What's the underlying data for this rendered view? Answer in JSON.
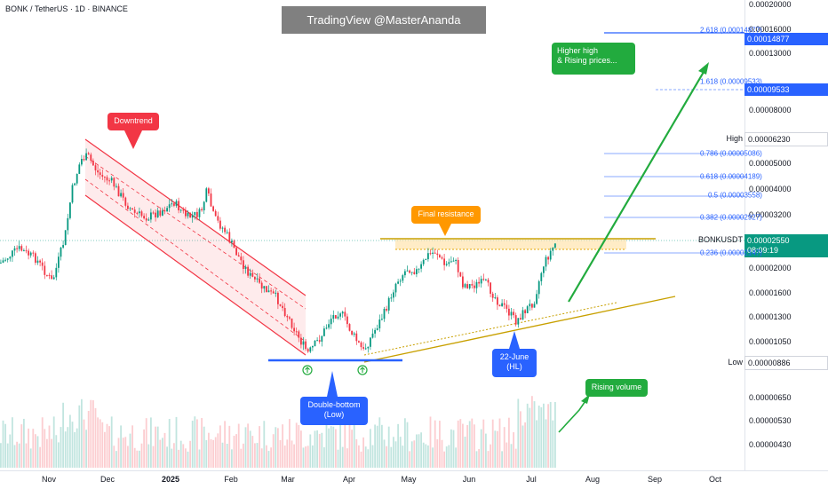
{
  "header": {
    "symbol_title": "BONK / TetherUS · 1D · BINANCE",
    "watermark": "TradingView @MasterAnanda"
  },
  "price_axis": {
    "ticks": [
      "0.00020000",
      "0.00016000",
      "0.00013000",
      "0.00008000",
      "0.00005000",
      "0.00004000",
      "0.00003200",
      "0.00002000",
      "0.00001600",
      "0.00001300",
      "0.00001050",
      "0.00000650",
      "0.00000530",
      "0.00000430"
    ],
    "high_label": "High",
    "high_value": "0.00006230",
    "low_label": "Low",
    "low_value": "0.00000886",
    "symbol_tag": "BONKUSDT",
    "last_price": "0.00002550",
    "countdown": "08:09:19",
    "fib_tag_1": "0.00014877",
    "fib_tag_2": "0.00009533"
  },
  "time_axis": {
    "labels": [
      "Nov",
      "Dec",
      "2025",
      "Feb",
      "Mar",
      "Apr",
      "May",
      "Jun",
      "Jul",
      "Aug",
      "Sep",
      "Oct"
    ]
  },
  "fib_levels": [
    {
      "label": "2.618 (0.00014877)"
    },
    {
      "label": "1.618 (0.00009533)"
    },
    {
      "label": "0.786 (0.00005086)"
    },
    {
      "label": "0.618 (0.00004189)"
    },
    {
      "label": "0.5 (0.00003558)"
    },
    {
      "label": "0.382 (0.00002927)"
    },
    {
      "label": "0.236 (0.00002147)"
    }
  ],
  "annotations": {
    "downtrend": "Downtrend",
    "final_resistance": "Final resistance",
    "double_bottom": "Double-bottom\n(Low)",
    "hl": "22-June\n(HL)",
    "rising_volume": "Rising volume",
    "higher_high": "Higher high\n& Rising prices..."
  },
  "colors": {
    "up": "#089981",
    "down": "#f23645",
    "fib": "#2962ff",
    "resistance": "#c8a000",
    "arrow": "#22ab3e"
  },
  "chart_data": {
    "type": "candlestick",
    "symbol": "BONKUSDT",
    "timeframe": "1D",
    "exchange": "BINANCE",
    "x": [
      "Nov 2024",
      "Dec 2024",
      "Jan 2025",
      "Feb 2025",
      "Mar 2025",
      "Apr 2025",
      "May 2025",
      "Jun 2025",
      "Jul 2025"
    ],
    "series": [
      {
        "name": "monthly_close_approx",
        "values": [
          4.5e-05,
          3.3e-05,
          2.9e-05,
          1.8e-05,
          1.2e-05,
          1.55e-05,
          2e-05,
          1.5e-05,
          2.55e-05
        ]
      }
    ],
    "high": 6.23e-05,
    "low": 8.86e-06,
    "last": 2.55e-05,
    "yscale": "log"
  }
}
